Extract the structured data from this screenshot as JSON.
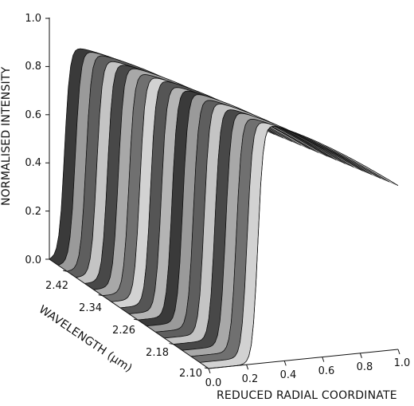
{
  "chart_data": {
    "type": "surface",
    "zlabel": "NORMALISED INTENSITY",
    "ylabel": "WAVELENGTH (μm)",
    "xlabel": "REDUCED RADIAL COORDINATE",
    "zticks": [
      "0.0",
      "0.2",
      "0.4",
      "0.6",
      "0.8",
      "1.0"
    ],
    "yticks": [
      "2.42",
      "2.34",
      "2.26",
      "2.18",
      "2.10"
    ],
    "xticks": [
      "0.0",
      "0.2",
      "0.4",
      "0.6",
      "0.8",
      "1.0"
    ],
    "zlim": [
      0,
      1
    ],
    "xlim": [
      0,
      1
    ],
    "ylim": [
      2.1,
      2.46
    ],
    "series": [
      {
        "wavelength": 2.46,
        "edge": 0.08,
        "peak": 0.88,
        "end": 0.5
      },
      {
        "wavelength": 2.44,
        "edge": 0.09,
        "peak": 0.89,
        "end": 0.51
      },
      {
        "wavelength": 2.42,
        "edge": 0.1,
        "peak": 0.9,
        "end": 0.52
      },
      {
        "wavelength": 2.4,
        "edge": 0.11,
        "peak": 0.9,
        "end": 0.53
      },
      {
        "wavelength": 2.38,
        "edge": 0.12,
        "peak": 0.91,
        "end": 0.54
      },
      {
        "wavelength": 2.36,
        "edge": 0.13,
        "peak": 0.92,
        "end": 0.55
      },
      {
        "wavelength": 2.34,
        "edge": 0.14,
        "peak": 0.92,
        "end": 0.56
      },
      {
        "wavelength": 2.32,
        "edge": 0.15,
        "peak": 0.93,
        "end": 0.57
      },
      {
        "wavelength": 2.3,
        "edge": 0.16,
        "peak": 0.94,
        "end": 0.58
      },
      {
        "wavelength": 2.28,
        "edge": 0.17,
        "peak": 0.94,
        "end": 0.59
      },
      {
        "wavelength": 2.26,
        "edge": 0.18,
        "peak": 0.95,
        "end": 0.6
      },
      {
        "wavelength": 2.24,
        "edge": 0.19,
        "peak": 0.96,
        "end": 0.61
      },
      {
        "wavelength": 2.22,
        "edge": 0.2,
        "peak": 0.96,
        "end": 0.62
      },
      {
        "wavelength": 2.2,
        "edge": 0.21,
        "peak": 0.97,
        "end": 0.63
      },
      {
        "wavelength": 2.18,
        "edge": 0.22,
        "peak": 0.97,
        "end": 0.64
      },
      {
        "wavelength": 2.16,
        "edge": 0.23,
        "peak": 0.98,
        "end": 0.65
      },
      {
        "wavelength": 2.14,
        "edge": 0.24,
        "peak": 0.98,
        "end": 0.66
      },
      {
        "wavelength": 2.12,
        "edge": 0.25,
        "peak": 0.99,
        "end": 0.67
      },
      {
        "wavelength": 2.1,
        "edge": 0.26,
        "peak": 1.0,
        "end": 0.68
      }
    ],
    "colors": {
      "surface_dark": "#2a2a2a",
      "surface_mid": "#7a7a7a",
      "surface_light": "#c8c8c8",
      "axis": "#111111"
    }
  }
}
